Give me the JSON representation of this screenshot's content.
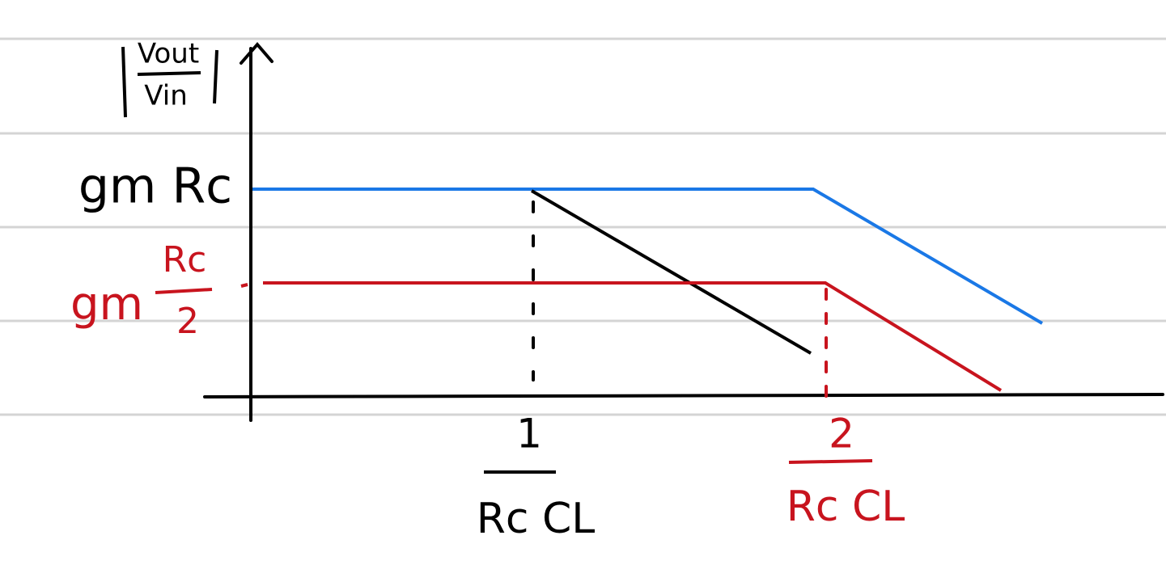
{
  "y_axis_label": {
    "numerator": "Vout",
    "denominator": "Vin"
  },
  "levels": [
    {
      "label": "gm Rc"
    },
    {
      "prefix": "gm",
      "numerator": "Rc",
      "denominator": "2"
    }
  ],
  "frequencies": [
    {
      "numerator": "1",
      "denominator": "Rc CL"
    },
    {
      "numerator": "2",
      "denominator": "Rc CL"
    }
  ]
}
